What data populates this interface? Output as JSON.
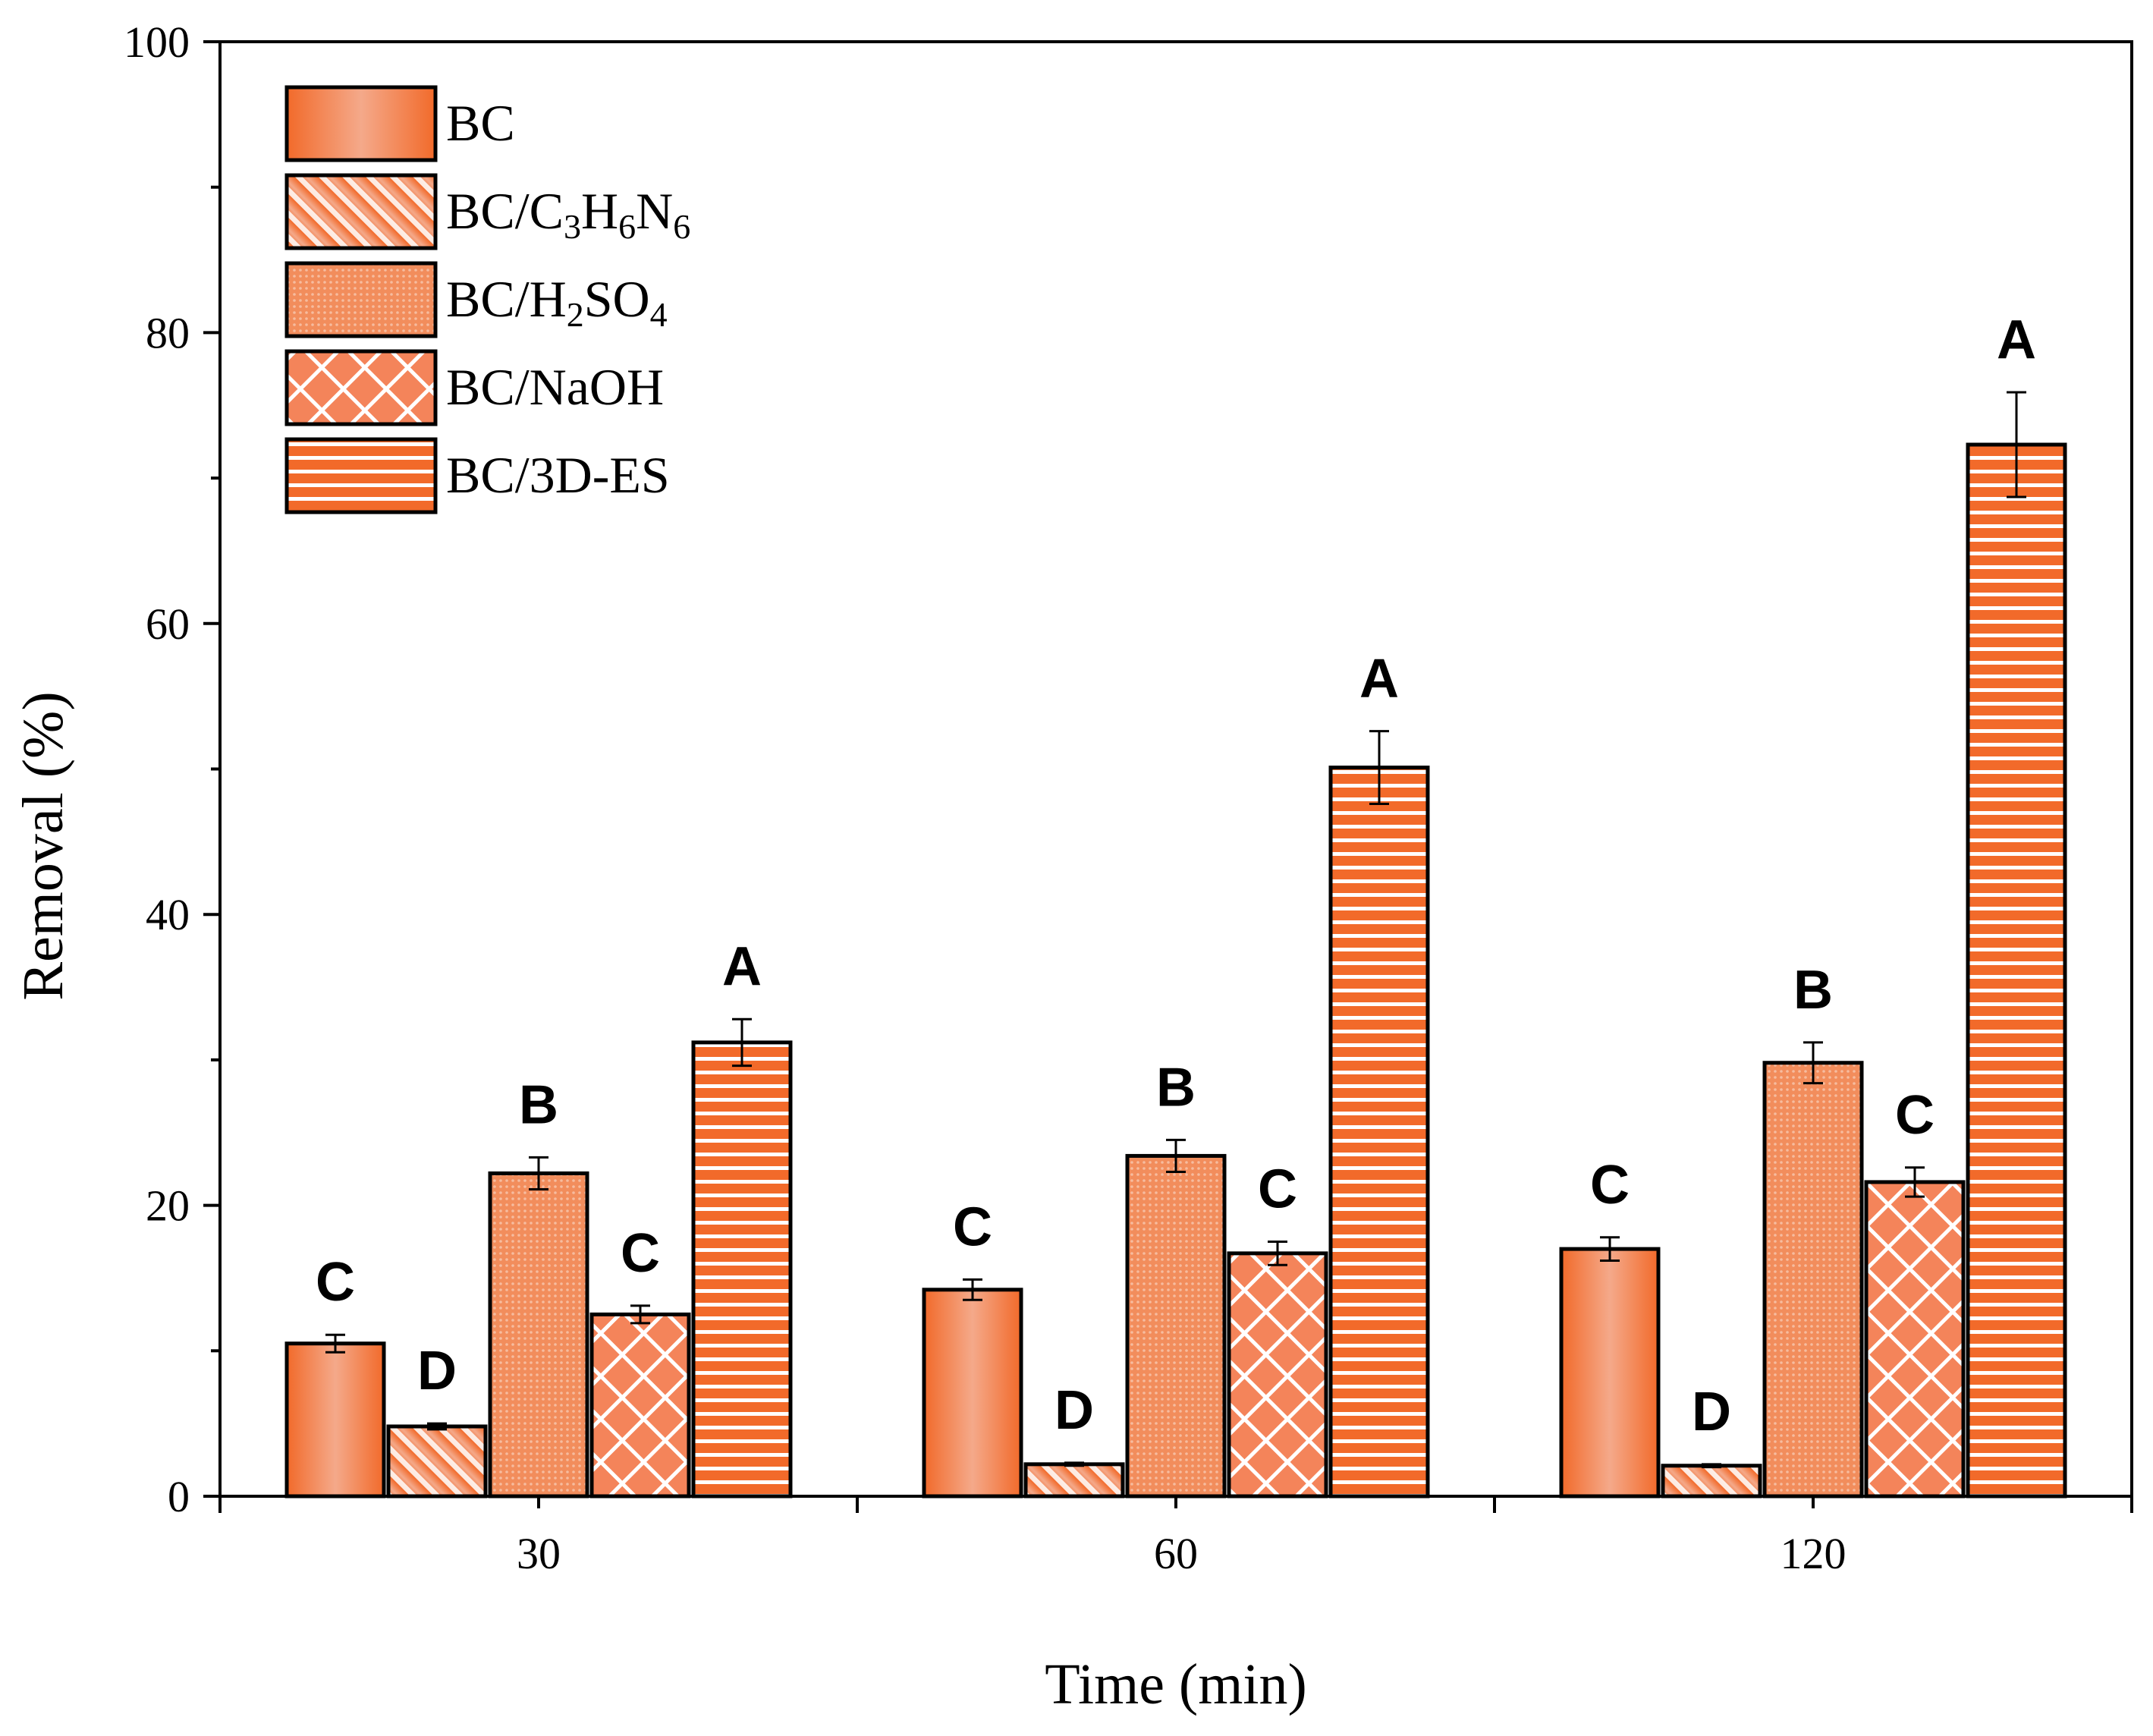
{
  "chart_data": {
    "type": "bar",
    "title": "",
    "xlabel": "Time (min)",
    "ylabel": "Removal (%)",
    "ylim": [
      0,
      100
    ],
    "yticks": [
      "0",
      "20",
      "40",
      "60",
      "80",
      "100"
    ],
    "categories": [
      "30",
      "60",
      "120"
    ],
    "legend_position": "top-left",
    "series": [
      {
        "name": "BC",
        "legend_parts": [
          [
            "BC",
            "n"
          ]
        ],
        "pattern": "gradient",
        "values": [
          10.5,
          14.2,
          17.0
        ],
        "errors": [
          0.6,
          0.7,
          0.8
        ],
        "labels": [
          "C",
          "C",
          "C"
        ]
      },
      {
        "name": "BC/C3H6N6",
        "legend_parts": [
          [
            "BC/C",
            "n"
          ],
          [
            "3",
            "s"
          ],
          [
            "H",
            "n"
          ],
          [
            "6",
            "s"
          ],
          [
            "N",
            "n"
          ],
          [
            "6",
            "s"
          ]
        ],
        "pattern": "diagonal",
        "values": [
          4.8,
          2.2,
          2.1
        ],
        "errors": [
          0.2,
          0.1,
          0.1
        ],
        "labels": [
          "D",
          "D",
          "D"
        ]
      },
      {
        "name": "BC/H2SO4",
        "legend_parts": [
          [
            "BC/H",
            "n"
          ],
          [
            "2",
            "s"
          ],
          [
            "SO",
            "n"
          ],
          [
            "4",
            "s"
          ]
        ],
        "pattern": "dots",
        "values": [
          22.2,
          23.4,
          29.8
        ],
        "errors": [
          1.1,
          1.1,
          1.4
        ],
        "labels": [
          "B",
          "B",
          "B"
        ]
      },
      {
        "name": "BC/NaOH",
        "legend_parts": [
          [
            "BC/NaOH",
            "n"
          ]
        ],
        "pattern": "crosshatch",
        "values": [
          12.5,
          16.7,
          21.6
        ],
        "errors": [
          0.6,
          0.8,
          1.0
        ],
        "labels": [
          "C",
          "C",
          "C"
        ]
      },
      {
        "name": "BC/3D-ES",
        "legend_parts": [
          [
            "BC/3D-ES",
            "n"
          ]
        ],
        "pattern": "horizontal",
        "values": [
          31.2,
          50.1,
          72.3
        ],
        "errors": [
          1.6,
          2.5,
          3.6
        ],
        "labels": [
          "A",
          "A",
          "A"
        ]
      }
    ]
  },
  "colors": {
    "bar_fill": "#f26a2a",
    "bar_light": "#f4a98a",
    "stroke": "#000000",
    "background": "#ffffff"
  }
}
